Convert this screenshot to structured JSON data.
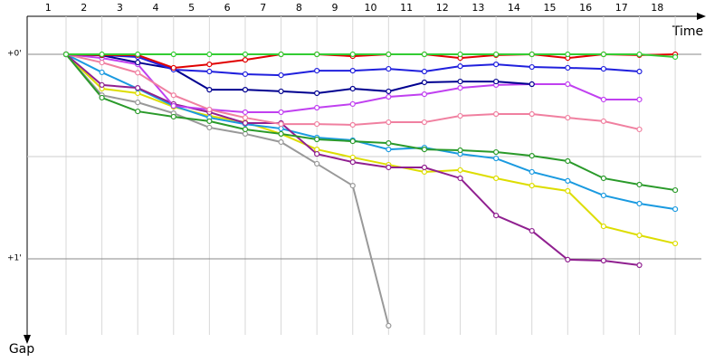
{
  "chart_data": {
    "type": "line",
    "x_label": "Time",
    "y_label": "Gap",
    "x": [
      1,
      2,
      3,
      4,
      5,
      6,
      7,
      8,
      9,
      10,
      11,
      12,
      13,
      14,
      15,
      16,
      17,
      18
    ],
    "xlim": [
      -0.086,
      18.73
    ],
    "xticks": [
      {
        "value": 0.5,
        "label": "1"
      },
      {
        "value": 1.5,
        "label": "2"
      },
      {
        "value": 2.5,
        "label": "3"
      },
      {
        "value": 3.5,
        "label": "4"
      },
      {
        "value": 4.5,
        "label": "5"
      },
      {
        "value": 5.5,
        "label": "6"
      },
      {
        "value": 6.5,
        "label": "7"
      },
      {
        "value": 7.5,
        "label": "8"
      },
      {
        "value": 8.5,
        "label": "9"
      },
      {
        "value": 9.5,
        "label": "10"
      },
      {
        "value": 10.5,
        "label": "11"
      },
      {
        "value": 11.5,
        "label": "12"
      },
      {
        "value": 12.5,
        "label": "13"
      },
      {
        "value": 13.5,
        "label": "14"
      },
      {
        "value": 14.5,
        "label": "15"
      },
      {
        "value": 15.5,
        "label": "16"
      },
      {
        "value": 16.5,
        "label": "17"
      },
      {
        "value": 17.5,
        "label": "18"
      }
    ],
    "ylim": [
      -0.186,
      1.416
    ],
    "yticks": [
      {
        "value": 0,
        "label": "+0'"
      },
      {
        "value": 0.5,
        "label": null
      },
      {
        "value": 1,
        "label": "+1'"
      }
    ],
    "grid": true,
    "series": [
      {
        "color": "#999999",
        "values": [
          0,
          0.2,
          0.235,
          0.288,
          0.358,
          0.389,
          0.429,
          0.535,
          0.642,
          1.327,
          null,
          null,
          null,
          null,
          null,
          null,
          null,
          null
        ]
      },
      {
        "color": "#dddd00",
        "values": [
          0,
          0.168,
          0.19,
          0.257,
          0.301,
          0.332,
          0.389,
          0.465,
          0.504,
          0.54,
          0.575,
          0.566,
          0.606,
          0.642,
          0.668,
          0.841,
          0.885,
          0.925
        ]
      },
      {
        "color": "#1a9ae0",
        "values": [
          0,
          0.088,
          0.168,
          0.252,
          0.31,
          0.341,
          0.363,
          0.407,
          0.42,
          0.465,
          0.456,
          0.487,
          0.509,
          0.575,
          0.619,
          0.69,
          0.73,
          0.757
        ]
      },
      {
        "color": "#902090",
        "values": [
          0,
          0.15,
          0.164,
          0.243,
          0.283,
          0.336,
          0.336,
          0.487,
          0.527,
          0.553,
          0.553,
          0.606,
          0.788,
          0.863,
          1.004,
          1.009,
          1.031,
          null
        ]
      },
      {
        "color": "#2a9a2a",
        "values": [
          0,
          0.212,
          0.279,
          0.305,
          0.327,
          0.367,
          0.389,
          0.416,
          0.425,
          0.434,
          0.465,
          0.469,
          0.478,
          0.496,
          0.522,
          0.606,
          0.637,
          0.664
        ]
      },
      {
        "color": "#c040f0",
        "values": [
          0,
          0.018,
          0.049,
          0.252,
          0.27,
          0.283,
          0.283,
          0.261,
          0.243,
          0.208,
          0.195,
          0.164,
          0.15,
          0.146,
          0.146,
          0.221,
          0.221,
          null
        ]
      },
      {
        "color": "#f080a0",
        "values": [
          0,
          0.04,
          0.09,
          0.2,
          0.27,
          0.31,
          0.341,
          0.341,
          0.345,
          0.332,
          0.332,
          0.301,
          0.292,
          0.292,
          0.31,
          0.327,
          0.367,
          null
        ]
      },
      {
        "color": "#000090",
        "values": [
          0,
          0.005,
          0.04,
          0.071,
          0.173,
          0.173,
          0.181,
          0.19,
          0.168,
          0.181,
          0.137,
          0.133,
          0.133,
          0.146,
          null,
          null,
          null,
          null
        ]
      },
      {
        "color": "#2020dd",
        "values": [
          0,
          0.004,
          0.013,
          0.075,
          0.084,
          0.097,
          0.102,
          0.08,
          0.08,
          0.071,
          0.084,
          0.058,
          0.049,
          0.062,
          0.066,
          0.071,
          0.084,
          null
        ]
      },
      {
        "color": "#e00000",
        "values": [
          0,
          0.004,
          0.004,
          0.066,
          0.049,
          0.027,
          0,
          0,
          0.009,
          0,
          0,
          0.018,
          0.004,
          0,
          0.018,
          0,
          0.004,
          0
        ]
      },
      {
        "color": "#33cc33",
        "values": [
          0,
          0,
          0,
          0,
          0,
          0,
          0,
          0,
          0,
          0,
          0,
          0,
          0,
          0,
          0,
          0,
          0,
          0.013
        ]
      }
    ]
  }
}
